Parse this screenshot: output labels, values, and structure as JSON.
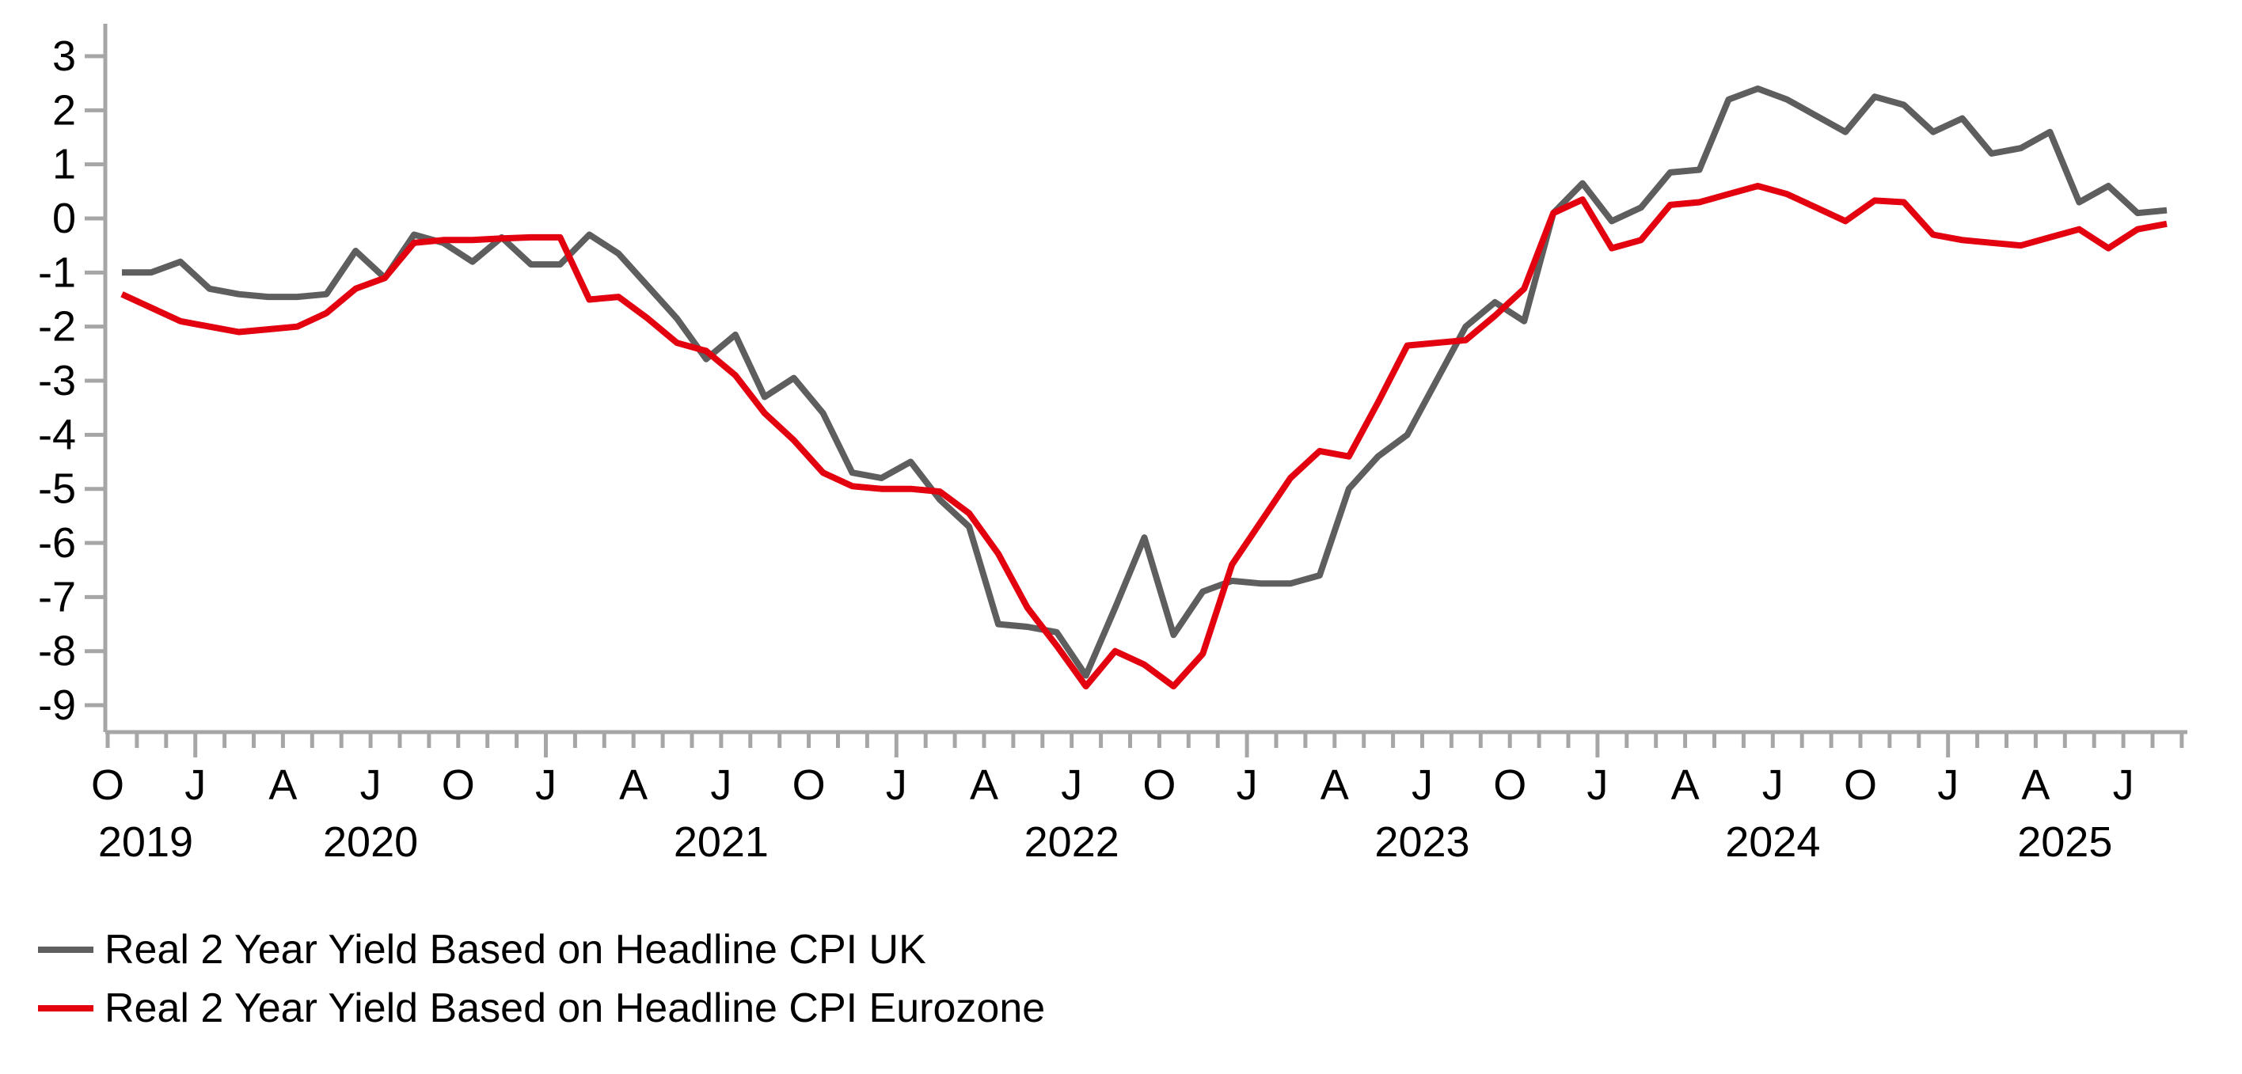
{
  "chart_data": {
    "type": "line",
    "title": "",
    "xlabel": "",
    "ylabel": "",
    "x_start": "2019-10",
    "x_frequency": "monthly",
    "x_end": "2025-08",
    "ylim": [
      -9,
      3
    ],
    "y_tick_step": 1,
    "y_tick_labels": [
      "3",
      "2",
      "1",
      "0",
      "-1",
      "-2",
      "-3",
      "-4",
      "-5",
      "-6",
      "-7",
      "-8",
      "-9"
    ],
    "grid": false,
    "legend_position": "bottom-left",
    "x_quarter_letters": [
      "O",
      "J",
      "A",
      "J",
      "O",
      "J",
      "A",
      "J",
      "O",
      "J",
      "A",
      "J",
      "O",
      "J",
      "A",
      "J",
      "O",
      "J",
      "A",
      "J",
      "O",
      "J",
      "A",
      "J"
    ],
    "x_quarter_month_indices": [
      0,
      3,
      6,
      9,
      12,
      15,
      18,
      21,
      24,
      27,
      30,
      33,
      36,
      39,
      42,
      45,
      48,
      51,
      54,
      57,
      60,
      63,
      66,
      69
    ],
    "x_major_tick_month_indices": [
      3,
      15,
      27,
      39,
      51,
      63
    ],
    "year_labels": [
      {
        "text": "2019",
        "month_index": 1.3
      },
      {
        "text": "2020",
        "month_index": 9
      },
      {
        "text": "2021",
        "month_index": 21
      },
      {
        "text": "2022",
        "month_index": 33
      },
      {
        "text": "2023",
        "month_index": 45
      },
      {
        "text": "2024",
        "month_index": 57
      },
      {
        "text": "2025",
        "month_index": 67
      }
    ],
    "series": [
      {
        "name": "Real 2 Year Yield Based on Headline CPI UK",
        "color": "#5e5e5e",
        "values": [
          -1.0,
          -1.0,
          -0.8,
          -1.3,
          -1.4,
          -1.45,
          -1.45,
          -1.4,
          -0.6,
          -1.1,
          -0.3,
          -0.45,
          -0.8,
          -0.35,
          -0.85,
          -0.85,
          -0.3,
          -0.65,
          -1.25,
          -1.85,
          -2.6,
          -2.15,
          -3.3,
          -2.95,
          -3.6,
          -4.7,
          -4.8,
          -4.5,
          -5.2,
          -5.7,
          -7.5,
          -7.55,
          -7.65,
          -8.45,
          -7.2,
          -5.9,
          -7.7,
          -6.9,
          -6.7,
          -6.75,
          -6.75,
          -6.6,
          -5.0,
          -4.4,
          -4.0,
          -3.0,
          -2.0,
          -1.55,
          -1.9,
          0.1,
          0.65,
          -0.05,
          0.2,
          0.85,
          0.9,
          2.2,
          2.4,
          2.2,
          1.9,
          1.6,
          2.25,
          2.1,
          1.6,
          1.85,
          1.2,
          1.3,
          1.6,
          0.3,
          0.6,
          0.1,
          0.15
        ]
      },
      {
        "name": "Real 2 Year Yield Based on Headline CPI Eurozone",
        "color": "#e3000f",
        "values": [
          -1.4,
          -1.65,
          -1.9,
          -2.0,
          -2.1,
          -2.05,
          -2.0,
          -1.75,
          -1.3,
          -1.1,
          -0.45,
          -0.4,
          -0.4,
          -0.37,
          -0.35,
          -0.35,
          -1.5,
          -1.45,
          -1.85,
          -2.3,
          -2.45,
          -2.9,
          -3.6,
          -4.1,
          -4.7,
          -4.95,
          -5.0,
          -5.0,
          -5.05,
          -5.45,
          -6.2,
          -7.2,
          -7.9,
          -8.65,
          -8.0,
          -8.25,
          -8.65,
          -8.05,
          -6.4,
          -5.6,
          -4.8,
          -4.3,
          -4.4,
          -3.4,
          -2.35,
          -2.3,
          -2.25,
          -1.8,
          -1.3,
          0.1,
          0.35,
          -0.55,
          -0.4,
          0.25,
          0.3,
          0.45,
          0.6,
          0.45,
          0.2,
          -0.05,
          0.33,
          0.3,
          -0.3,
          -0.4,
          -0.45,
          -0.5,
          -0.35,
          -0.2,
          -0.55,
          -0.2,
          -0.1
        ]
      }
    ],
    "axis_color": "#a6a6a6",
    "tick_label_color": "#000000",
    "legend_text_color": "#000000"
  }
}
